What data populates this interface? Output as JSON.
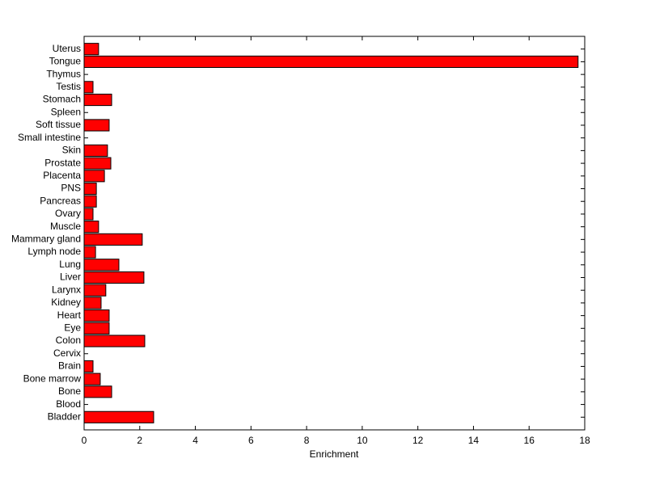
{
  "chart_data": {
    "type": "barh",
    "xlabel": "Enrichment",
    "categories": [
      "Uterus",
      "Tongue",
      "Thymus",
      "Testis",
      "Stomach",
      "Spleen",
      "Soft tissue",
      "Small intestine",
      "Skin",
      "Prostate",
      "Placenta",
      "PNS",
      "Pancreas",
      "Ovary",
      "Muscle",
      "Mammary gland",
      "Lymph node",
      "Lung",
      "Liver",
      "Larynx",
      "Kidney",
      "Heart",
      "Eye",
      "Colon",
      "Cervix",
      "Brain",
      "Bone marrow",
      "Bone",
      "Blood",
      "Bladder"
    ],
    "values": [
      0.52,
      17.76,
      0,
      0.32,
      0.99,
      0,
      0.9,
      0,
      0.84,
      0.96,
      0.73,
      0.44,
      0.44,
      0.32,
      0.52,
      2.09,
      0.41,
      1.25,
      2.15,
      0.78,
      0.61,
      0.9,
      0.9,
      2.18,
      0,
      0.32,
      0.58,
      0.99,
      0,
      2.5
    ],
    "color": "#ff0000",
    "xlim": [
      0,
      18
    ],
    "xticks": [
      0,
      2,
      4,
      6,
      8,
      10,
      12,
      14,
      16,
      18
    ]
  }
}
